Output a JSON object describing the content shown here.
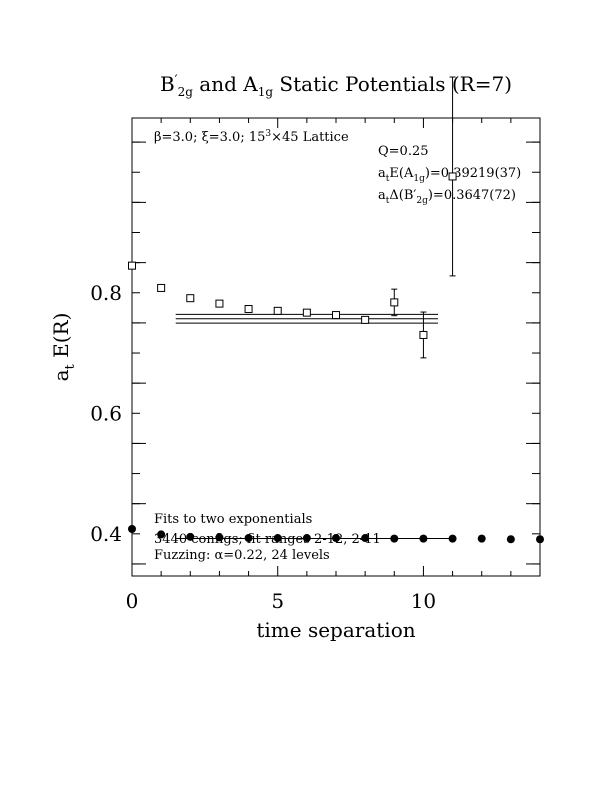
{
  "chart_data": {
    "type": "scatter",
    "title": {
      "main": "B",
      "main_sup": "′",
      "main_sub": "2g",
      "mid": " and A",
      "mid_sub": "1g",
      "end": " Static Potentials (R=7)"
    },
    "xlabel": "time separation",
    "ylabel": {
      "prefix": "a",
      "sub": "t",
      "suffix": " E(R)"
    },
    "xlim": [
      0,
      14
    ],
    "ylim": [
      0.33,
      1.09
    ],
    "x_ticks": [
      0,
      5,
      10
    ],
    "y_ticks": [
      0.4,
      0.6,
      0.8
    ],
    "x_tick_labels": [
      "0",
      "5",
      "10"
    ],
    "y_tick_labels": [
      "0.4",
      "0.6",
      "0.8"
    ],
    "annotations": {
      "lattice": "β=3.0; ξ=3.0; 15³×45 Lattice",
      "q": "Q=0.25",
      "a1g_energy": "a_tE(A_1g)=0.39219(37)",
      "b2g_gap": "a_tΔ(B′_2g)=0.3647(72)",
      "fits": "Fits to two exponentials",
      "configs": "3440 configs; fit ranges 2-12, 2-11",
      "fuzzing": "Fuzzing: α=0.22, 24 levels"
    },
    "series": [
      {
        "marker": "filled-circle",
        "x": [
          0,
          1,
          2,
          3,
          4,
          5,
          6,
          7,
          8,
          9,
          10,
          11,
          12,
          13,
          14
        ],
        "y": [
          0.408,
          0.399,
          0.395,
          0.394,
          0.393,
          0.393,
          0.393,
          0.393,
          0.393,
          0.392,
          0.392,
          0.392,
          0.392,
          0.391,
          0.391
        ],
        "err": [
          0.001,
          0.001,
          0.001,
          0.001,
          0.001,
          0.001,
          0.001,
          0.001,
          0.001,
          0.001,
          0.001,
          0.001,
          0.001,
          0.001,
          0.001
        ]
      },
      {
        "marker": "open-square",
        "x": [
          0,
          1,
          2,
          3,
          4,
          5,
          6,
          7,
          8,
          9,
          10,
          11
        ],
        "y": [
          0.845,
          0.808,
          0.791,
          0.782,
          0.773,
          0.77,
          0.767,
          0.763,
          0.755,
          0.784,
          0.73,
          0.993
        ],
        "err": [
          0.002,
          0.002,
          0.002,
          0.003,
          0.003,
          0.004,
          0.005,
          0.006,
          0.008,
          0.022,
          0.038,
          0.165
        ]
      }
    ],
    "fits": [
      {
        "x_range": [
          1.5,
          11
        ],
        "lines": [
          0.3922,
          0.3922
        ]
      },
      {
        "x_range": [
          1.5,
          10.5
        ],
        "lines": [
          0.7497,
          0.7569,
          0.7641
        ]
      }
    ]
  }
}
